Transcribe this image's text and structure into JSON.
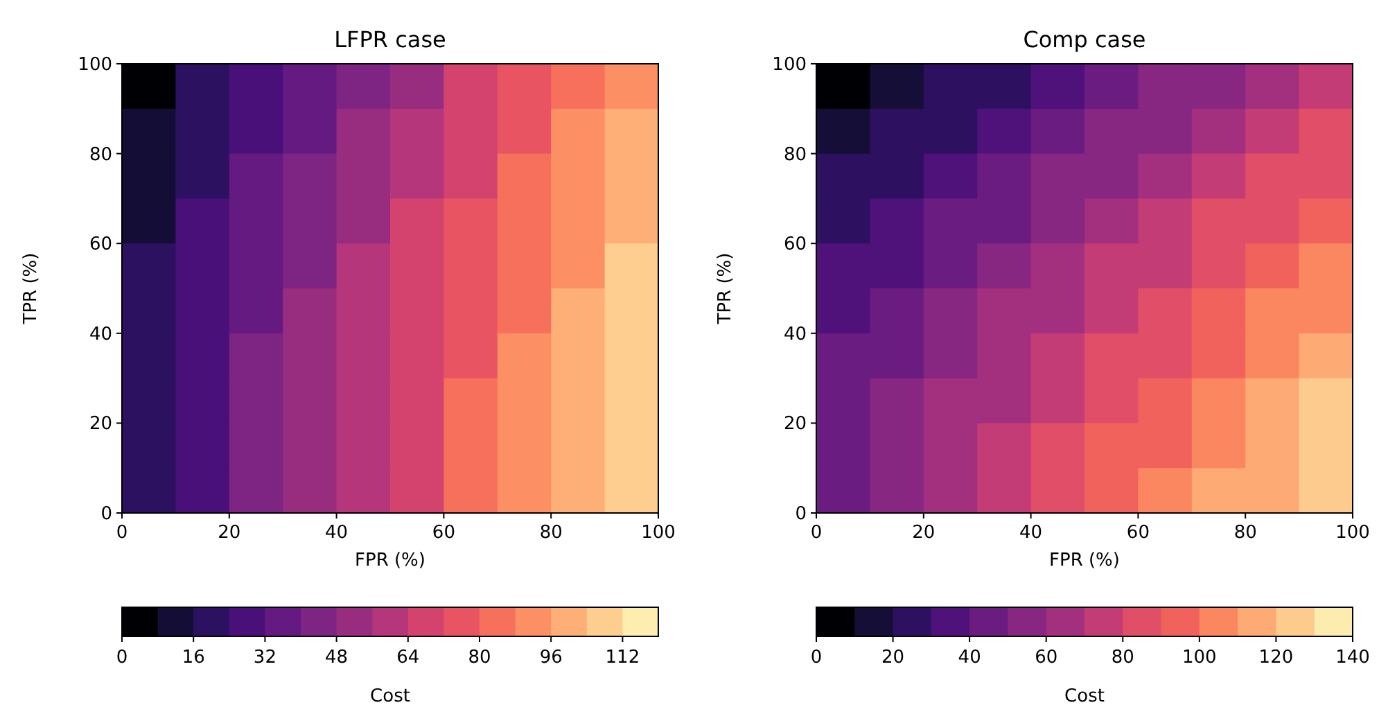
{
  "chart_data": [
    {
      "type": "heatmap",
      "title": "LFPR case",
      "xlabel": "FPR (%)",
      "ylabel": "TPR (%)",
      "clabel": "Cost",
      "xlim": [
        0,
        100
      ],
      "ylim": [
        0,
        100
      ],
      "xticks": [
        0,
        20,
        40,
        60,
        80,
        100
      ],
      "yticks": [
        0,
        20,
        40,
        60,
        80,
        100
      ],
      "clim": [
        0,
        120
      ],
      "cticks": [
        0,
        16,
        32,
        48,
        64,
        80,
        96,
        112
      ],
      "colors": [
        "#000004",
        "#140e36",
        "#2c1160",
        "#4a1079",
        "#641a80",
        "#7e2482",
        "#982d80",
        "#b5367a",
        "#d3436e",
        "#e95462",
        "#f7705c",
        "#fc8f64",
        "#feaf77",
        "#fecd90",
        "#fdedaf"
      ],
      "cells": [
        [
          6,
          16,
          26,
          36,
          46,
          55,
          65,
          75,
          85,
          95
        ],
        [
          9,
          19,
          29,
          39,
          48,
          58,
          68,
          78,
          88,
          97
        ],
        [
          12,
          22,
          32,
          42,
          51,
          61,
          71,
          81,
          91,
          100
        ],
        [
          15,
          25,
          34,
          44,
          54,
          64,
          74,
          83,
          93,
          103
        ],
        [
          17,
          27,
          37,
          46,
          56,
          66,
          76,
          86,
          95,
          105
        ],
        [
          19,
          28,
          38,
          48,
          58,
          68,
          77,
          87,
          97,
          107
        ],
        [
          20,
          30,
          40,
          49,
          59,
          69,
          79,
          89,
          98,
          108
        ],
        [
          21,
          31,
          41,
          50,
          60,
          70,
          80,
          90,
          99,
          109
        ],
        [
          21,
          31,
          41,
          51,
          60,
          70,
          80,
          90,
          100,
          109
        ],
        [
          21,
          31,
          41,
          51,
          60,
          70,
          80,
          90,
          100,
          109
        ]
      ]
    },
    {
      "type": "heatmap",
      "title": "Comp case",
      "xlabel": "FPR (%)",
      "ylabel": "TPR (%)",
      "clabel": "Cost",
      "xlim": [
        0,
        100
      ],
      "ylim": [
        0,
        100
      ],
      "xticks": [
        0,
        20,
        40,
        60,
        80,
        100
      ],
      "yticks": [
        0,
        20,
        40,
        60,
        80,
        100
      ],
      "clim": [
        0,
        140
      ],
      "cticks": [
        0,
        20,
        40,
        60,
        80,
        100,
        120,
        140
      ],
      "colors": [
        "#000004",
        "#150e37",
        "#2d1160",
        "#4f127b",
        "#6a1c81",
        "#872781",
        "#a3307e",
        "#c43c75",
        "#e04f67",
        "#f2625d",
        "#fb8761",
        "#fdaa75",
        "#fecb8f",
        "#fcecae"
      ],
      "cells": [
        [
          7,
          14,
          22,
          29,
          36,
          44,
          51,
          58,
          66,
          73
        ],
        [
          14,
          22,
          29,
          37,
          44,
          51,
          59,
          66,
          74,
          81
        ],
        [
          20,
          28,
          35,
          43,
          50,
          58,
          66,
          73,
          81,
          89
        ],
        [
          26,
          33,
          41,
          49,
          57,
          65,
          72,
          80,
          88,
          96
        ],
        [
          31,
          39,
          47,
          55,
          63,
          70,
          78,
          86,
          94,
          102
        ],
        [
          35,
          44,
          52,
          60,
          68,
          76,
          84,
          92,
          101,
          109
        ],
        [
          40,
          48,
          56,
          64,
          73,
          81,
          89,
          98,
          106,
          114
        ],
        [
          43,
          52,
          60,
          69,
          77,
          86,
          94,
          103,
          111,
          120
        ],
        [
          46,
          55,
          64,
          72,
          81,
          90,
          98,
          107,
          116,
          124
        ],
        [
          48,
          57,
          66,
          75,
          84,
          93,
          101,
          110,
          119,
          128
        ]
      ]
    }
  ]
}
